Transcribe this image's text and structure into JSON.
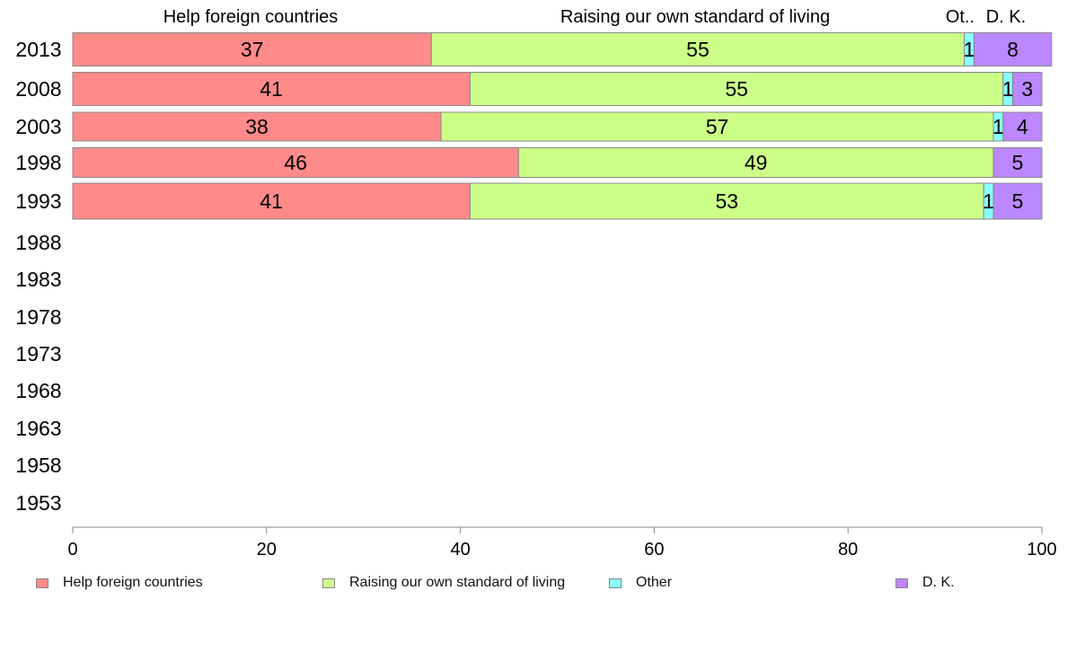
{
  "chart_data": {
    "type": "bar",
    "orientation": "horizontal",
    "stacked": true,
    "categories": [
      "2013",
      "2008",
      "2003",
      "1998",
      "1993",
      "1988",
      "1983",
      "1978",
      "1973",
      "1968",
      "1963",
      "1958",
      "1953"
    ],
    "series": [
      {
        "name": "Help foreign countries",
        "color": "#ff8a8a",
        "values": [
          37,
          41,
          38,
          46,
          41,
          null,
          null,
          null,
          null,
          null,
          null,
          null,
          null
        ]
      },
      {
        "name": "Raising our own standard of living",
        "color": "#ccff88",
        "values": [
          55,
          55,
          57,
          49,
          53,
          null,
          null,
          null,
          null,
          null,
          null,
          null,
          null
        ]
      },
      {
        "name": "Other",
        "color": "#88ffff",
        "values": [
          1,
          1,
          1,
          0,
          1,
          null,
          null,
          null,
          null,
          null,
          null,
          null,
          null
        ]
      },
      {
        "name": "D. K.",
        "color": "#bb88ff",
        "values": [
          8,
          3,
          4,
          5,
          5,
          null,
          null,
          null,
          null,
          null,
          null,
          null,
          null
        ]
      }
    ],
    "column_headers": [
      "Help foreign countries",
      "Raising our own standard of living",
      "Ot..",
      "D. K."
    ],
    "xlim": [
      0,
      100
    ],
    "xticks": [
      0,
      20,
      40,
      60,
      80,
      100
    ],
    "grid": false,
    "legend_position": "bottom"
  }
}
